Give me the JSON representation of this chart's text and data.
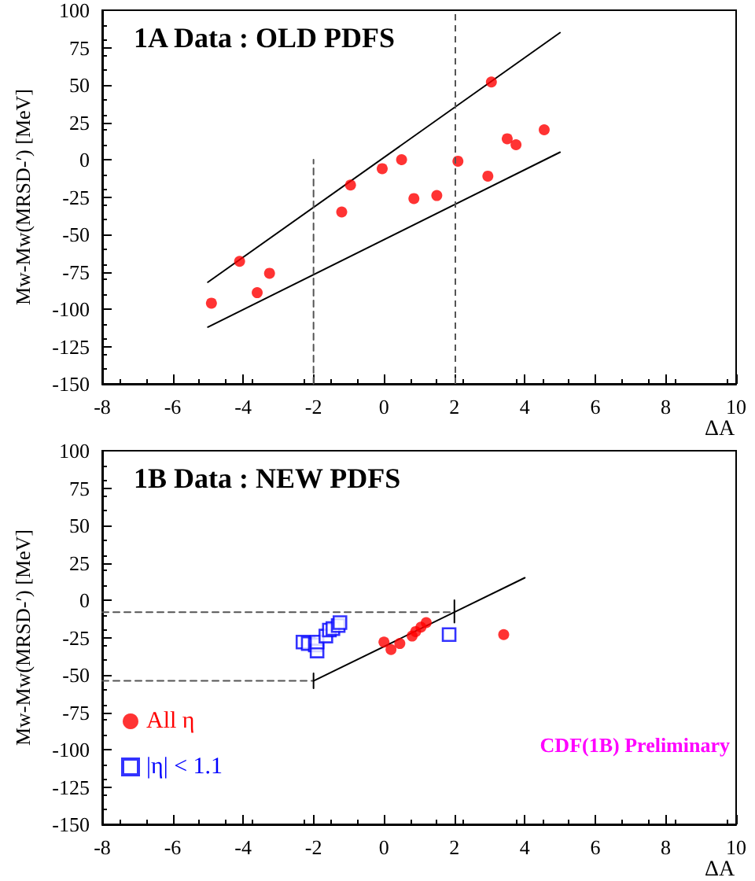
{
  "chart_data": [
    {
      "type": "scatter",
      "title": "1A Data : OLD PDFS",
      "xlabel": "ΔA",
      "ylabel": "Mw-Mw(MRSD-′) [MeV]",
      "xlim": [
        -8,
        10
      ],
      "xticks": [
        -8,
        -6,
        -4,
        -2,
        0,
        2,
        4,
        6,
        8,
        10
      ],
      "ylim": [
        -150,
        100
      ],
      "yticks": [
        -150,
        -125,
        -100,
        -75,
        -50,
        -25,
        0,
        25,
        50,
        75,
        100
      ],
      "grid": false,
      "legend": false,
      "series": [
        {
          "marker": "circle",
          "color": "#ff0000",
          "x": [
            -4.9,
            -4.1,
            -3.6,
            -3.25,
            -1.2,
            -0.95,
            -0.05,
            0.5,
            0.85,
            1.5,
            2.1,
            2.95,
            3.05,
            3.5,
            3.75,
            4.55
          ],
          "values": [
            -96,
            -68,
            -89,
            -76,
            -35,
            -17,
            -6,
            0,
            -26,
            -24,
            -1,
            -11,
            52,
            14,
            10,
            20
          ]
        },
        {
          "type": "line",
          "marker": "none",
          "line_style": "solid",
          "color": "#000000",
          "x": [
            -5,
            5
          ],
          "values": [
            -82,
            85
          ]
        },
        {
          "type": "line",
          "marker": "none",
          "line_style": "solid",
          "color": "#000000",
          "x": [
            -5,
            5
          ],
          "values": [
            -112,
            5
          ]
        },
        {
          "type": "line",
          "marker": "none",
          "line_style": "dashed",
          "color": "#555555",
          "x": [
            -2,
            -2
          ],
          "values": [
            -150,
            0
          ]
        }
      ],
      "ref_lines": [
        {
          "axis": "x",
          "value": 2,
          "color": "#555555",
          "line_style": "dashed"
        }
      ]
    },
    {
      "type": "scatter",
      "title": "1B Data : NEW PDFS",
      "xlabel": "ΔA",
      "ylabel": "Mw-Mw(MRSD-′) [MeV]",
      "xlim": [
        -8,
        10
      ],
      "xticks": [
        -8,
        -6,
        -4,
        -2,
        0,
        2,
        4,
        6,
        8,
        10
      ],
      "ylim": [
        -150,
        100
      ],
      "yticks": [
        -150,
        -125,
        -100,
        -75,
        -50,
        -25,
        0,
        25,
        50,
        75,
        100
      ],
      "grid": false,
      "legend": "bottom left",
      "annotations": [
        "CDF(1B) Preliminary"
      ],
      "series": [
        {
          "name": "All η",
          "marker": "circle",
          "color": "#ff0000",
          "x": [
            0,
            0.2,
            0.45,
            0.8,
            0.9,
            1.05,
            1.2,
            3.4
          ],
          "values": [
            -28,
            -33,
            -29,
            -24,
            -21,
            -18,
            -15,
            -23
          ]
        },
        {
          "name": "|η| < 1.1",
          "marker": "square",
          "color": "#0000ff",
          "x": [
            -2.3,
            -2.15,
            -1.95,
            -1.9,
            -1.9,
            -1.65,
            -1.55,
            -1.45,
            -1.3,
            -1.25,
            1.85
          ],
          "values": [
            -28,
            -29,
            -30,
            -34,
            -28,
            -24,
            -20,
            -19,
            -17,
            -15,
            -23
          ]
        },
        {
          "type": "line",
          "marker": "none",
          "line_style": "solid",
          "color": "#000000",
          "x": [
            -2,
            4
          ],
          "values": [
            -54,
            15
          ]
        },
        {
          "type": "line",
          "marker": "none",
          "line_style": "dashed",
          "color": "#555555",
          "x": [
            -8,
            -2
          ],
          "values": [
            -54,
            -54
          ]
        },
        {
          "type": "line",
          "marker": "none",
          "line_style": "dashed",
          "color": "#555555",
          "x": [
            -8,
            2
          ],
          "values": [
            -8,
            -8
          ]
        },
        {
          "type": "line",
          "marker": "none",
          "line_style": "solid",
          "color": "#000000",
          "x": [
            -2,
            -2
          ],
          "values": [
            -59,
            -49
          ]
        },
        {
          "type": "line",
          "marker": "none",
          "line_style": "solid",
          "color": "#000000",
          "x": [
            2,
            2
          ],
          "values": [
            -15,
            0
          ]
        }
      ]
    }
  ]
}
